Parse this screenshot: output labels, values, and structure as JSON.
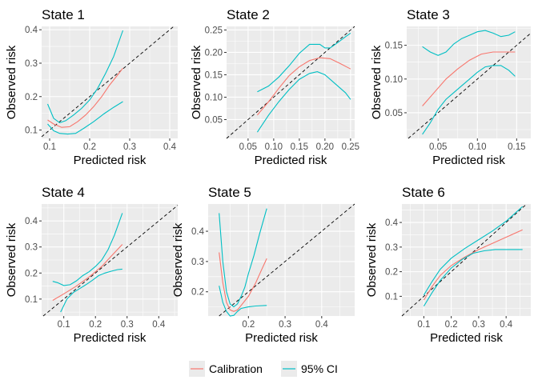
{
  "colors": {
    "calibration": "#F8766D",
    "ci": "#00BFC4",
    "panel_bg": "#EBEBEB",
    "grid": "#FFFFFF",
    "diagonal": "#000000"
  },
  "legend": {
    "items": [
      {
        "label": "Calibration",
        "color": "#F8766D"
      },
      {
        "label": "95% CI",
        "color": "#00BFC4"
      }
    ]
  },
  "chart_data": [
    {
      "type": "line",
      "title": "State 1",
      "xlabel": "Predicted risk",
      "ylabel": "Observed risk",
      "xlim": [
        0.08,
        0.42
      ],
      "ylim": [
        0.075,
        0.41
      ],
      "xticks": [
        0.1,
        0.2,
        0.3,
        0.4
      ],
      "xtick_labels": [
        "0.1",
        "0.2",
        "0.3",
        "0.4"
      ],
      "yticks": [
        0.1,
        0.2,
        0.3,
        0.4
      ],
      "ytick_labels": [
        "0.1",
        "0.2",
        "0.3",
        "0.4"
      ],
      "series": [
        {
          "name": "Calibration",
          "points": [
            [
              0.095,
              0.13
            ],
            [
              0.11,
              0.118
            ],
            [
              0.13,
              0.108
            ],
            [
              0.15,
              0.11
            ],
            [
              0.17,
              0.125
            ],
            [
              0.19,
              0.145
            ],
            [
              0.21,
              0.17
            ],
            [
              0.23,
              0.2
            ],
            [
              0.25,
              0.235
            ],
            [
              0.27,
              0.265
            ],
            [
              0.283,
              0.285
            ]
          ]
        },
        {
          "name": "95% CI",
          "points": [
            [
              0.095,
              0.178
            ],
            [
              0.11,
              0.135
            ],
            [
              0.125,
              0.122
            ],
            [
              0.14,
              0.128
            ],
            [
              0.16,
              0.145
            ],
            [
              0.18,
              0.165
            ],
            [
              0.2,
              0.19
            ],
            [
              0.22,
              0.225
            ],
            [
              0.24,
              0.27
            ],
            [
              0.26,
              0.32
            ],
            [
              0.283,
              0.398
            ]
          ]
        },
        {
          "name": "95% CI",
          "points": [
            [
              0.095,
              0.118
            ],
            [
              0.11,
              0.098
            ],
            [
              0.125,
              0.09
            ],
            [
              0.145,
              0.088
            ],
            [
              0.165,
              0.09
            ],
            [
              0.185,
              0.105
            ],
            [
              0.21,
              0.125
            ],
            [
              0.235,
              0.148
            ],
            [
              0.26,
              0.168
            ],
            [
              0.283,
              0.185
            ]
          ]
        }
      ]
    },
    {
      "type": "line",
      "title": "State 2",
      "xlabel": "Predicted risk",
      "ylabel": "Observed risk",
      "xlim": [
        0.008,
        0.258
      ],
      "ylim": [
        0.008,
        0.258
      ],
      "xticks": [
        0.05,
        0.1,
        0.15,
        0.2,
        0.25
      ],
      "xtick_labels": [
        "0.05",
        "0.10",
        "0.15",
        "0.20",
        "0.25"
      ],
      "yticks": [
        0.05,
        0.1,
        0.15,
        0.2,
        0.25
      ],
      "ytick_labels": [
        "0.05",
        "0.10",
        "0.15",
        "0.20",
        "0.25"
      ],
      "series": [
        {
          "name": "Calibration",
          "points": [
            [
              0.068,
              0.06
            ],
            [
              0.09,
              0.09
            ],
            [
              0.11,
              0.12
            ],
            [
              0.13,
              0.148
            ],
            [
              0.15,
              0.168
            ],
            [
              0.17,
              0.182
            ],
            [
              0.19,
              0.188
            ],
            [
              0.21,
              0.186
            ],
            [
              0.23,
              0.175
            ],
            [
              0.25,
              0.163
            ]
          ]
        },
        {
          "name": "95% CI",
          "points": [
            [
              0.068,
              0.112
            ],
            [
              0.09,
              0.125
            ],
            [
              0.11,
              0.145
            ],
            [
              0.13,
              0.17
            ],
            [
              0.15,
              0.198
            ],
            [
              0.17,
              0.218
            ],
            [
              0.19,
              0.218
            ],
            [
              0.2,
              0.21
            ],
            [
              0.21,
              0.21
            ],
            [
              0.225,
              0.222
            ],
            [
              0.24,
              0.235
            ],
            [
              0.25,
              0.243
            ]
          ]
        },
        {
          "name": "95% CI",
          "points": [
            [
              0.068,
              0.022
            ],
            [
              0.09,
              0.06
            ],
            [
              0.11,
              0.09
            ],
            [
              0.13,
              0.117
            ],
            [
              0.15,
              0.14
            ],
            [
              0.17,
              0.153
            ],
            [
              0.185,
              0.157
            ],
            [
              0.2,
              0.15
            ],
            [
              0.22,
              0.13
            ],
            [
              0.24,
              0.11
            ],
            [
              0.25,
              0.095
            ]
          ]
        }
      ]
    },
    {
      "type": "line",
      "title": "State 3",
      "xlabel": "Predicted risk",
      "ylabel": "Observed risk",
      "xlim": [
        0.01,
        0.168
      ],
      "ylim": [
        0.012,
        0.178
      ],
      "xticks": [
        0.05,
        0.1,
        0.15
      ],
      "xtick_labels": [
        "0.05",
        "0.10",
        "0.15"
      ],
      "yticks": [
        0.05,
        0.1,
        0.15
      ],
      "ytick_labels": [
        "0.05",
        "0.10",
        "0.15"
      ],
      "series": [
        {
          "name": "Calibration",
          "points": [
            [
              0.03,
              0.06
            ],
            [
              0.045,
              0.08
            ],
            [
              0.06,
              0.1
            ],
            [
              0.075,
              0.115
            ],
            [
              0.09,
              0.128
            ],
            [
              0.105,
              0.137
            ],
            [
              0.12,
              0.14
            ],
            [
              0.135,
              0.14
            ],
            [
              0.148,
              0.14
            ]
          ]
        },
        {
          "name": "95% CI",
          "points": [
            [
              0.03,
              0.148
            ],
            [
              0.04,
              0.14
            ],
            [
              0.05,
              0.135
            ],
            [
              0.06,
              0.14
            ],
            [
              0.07,
              0.152
            ],
            [
              0.08,
              0.16
            ],
            [
              0.09,
              0.165
            ],
            [
              0.1,
              0.17
            ],
            [
              0.11,
              0.172
            ],
            [
              0.12,
              0.168
            ],
            [
              0.13,
              0.163
            ],
            [
              0.14,
              0.165
            ],
            [
              0.148,
              0.17
            ]
          ]
        },
        {
          "name": "95% CI",
          "points": [
            [
              0.03,
              0.018
            ],
            [
              0.04,
              0.035
            ],
            [
              0.05,
              0.055
            ],
            [
              0.06,
              0.07
            ],
            [
              0.07,
              0.08
            ],
            [
              0.08,
              0.09
            ],
            [
              0.09,
              0.1
            ],
            [
              0.1,
              0.11
            ],
            [
              0.11,
              0.118
            ],
            [
              0.12,
              0.12
            ],
            [
              0.13,
              0.12
            ],
            [
              0.14,
              0.113
            ],
            [
              0.148,
              0.104
            ]
          ]
        }
      ]
    },
    {
      "type": "line",
      "title": "State 4",
      "xlabel": "Predicted risk",
      "ylabel": "Observed risk",
      "xlim": [
        0.03,
        0.46
      ],
      "ylim": [
        0.035,
        0.465
      ],
      "xticks": [
        0.1,
        0.2,
        0.3,
        0.4
      ],
      "xtick_labels": [
        "0.1",
        "0.2",
        "0.3",
        "0.4"
      ],
      "yticks": [
        0.1,
        0.2,
        0.3,
        0.4
      ],
      "ytick_labels": [
        "0.1",
        "0.2",
        "0.3",
        "0.4"
      ],
      "series": [
        {
          "name": "Calibration",
          "points": [
            [
              0.065,
              0.095
            ],
            [
              0.1,
              0.12
            ],
            [
              0.14,
              0.15
            ],
            [
              0.18,
              0.185
            ],
            [
              0.22,
              0.225
            ],
            [
              0.25,
              0.265
            ],
            [
              0.285,
              0.31
            ]
          ]
        },
        {
          "name": "95% CI",
          "points": [
            [
              0.065,
              0.168
            ],
            [
              0.08,
              0.163
            ],
            [
              0.1,
              0.152
            ],
            [
              0.12,
              0.155
            ],
            [
              0.14,
              0.17
            ],
            [
              0.16,
              0.19
            ],
            [
              0.18,
              0.205
            ],
            [
              0.2,
              0.225
            ],
            [
              0.22,
              0.25
            ],
            [
              0.24,
              0.29
            ],
            [
              0.26,
              0.345
            ],
            [
              0.285,
              0.43
            ]
          ]
        },
        {
          "name": "95% CI",
          "points": [
            [
              0.09,
              0.05
            ],
            [
              0.11,
              0.1
            ],
            [
              0.13,
              0.125
            ],
            [
              0.15,
              0.14
            ],
            [
              0.17,
              0.155
            ],
            [
              0.19,
              0.172
            ],
            [
              0.21,
              0.19
            ],
            [
              0.23,
              0.2
            ],
            [
              0.25,
              0.207
            ],
            [
              0.27,
              0.213
            ],
            [
              0.285,
              0.215
            ]
          ]
        }
      ]
    },
    {
      "type": "line",
      "title": "State 5",
      "xlabel": "Predicted risk",
      "ylabel": "Observed risk",
      "xlim": [
        0.09,
        0.49
      ],
      "ylim": [
        0.12,
        0.49
      ],
      "xticks": [
        0.2,
        0.3,
        0.4
      ],
      "xtick_labels": [
        "0.2",
        "0.3",
        "0.4"
      ],
      "yticks": [
        0.2,
        0.3,
        0.4
      ],
      "ytick_labels": [
        "0.2",
        "0.3",
        "0.4"
      ],
      "series": [
        {
          "name": "Calibration",
          "points": [
            [
              0.12,
              0.33
            ],
            [
              0.13,
              0.23
            ],
            [
              0.14,
              0.165
            ],
            [
              0.15,
              0.14
            ],
            [
              0.16,
              0.135
            ],
            [
              0.17,
              0.14
            ],
            [
              0.18,
              0.155
            ],
            [
              0.2,
              0.185
            ],
            [
              0.22,
              0.23
            ],
            [
              0.235,
              0.27
            ],
            [
              0.25,
              0.31
            ]
          ]
        },
        {
          "name": "95% CI",
          "points": [
            [
              0.12,
              0.46
            ],
            [
              0.13,
              0.3
            ],
            [
              0.14,
              0.2
            ],
            [
              0.15,
              0.16
            ],
            [
              0.16,
              0.15
            ],
            [
              0.17,
              0.16
            ],
            [
              0.18,
              0.185
            ],
            [
              0.19,
              0.215
            ],
            [
              0.2,
              0.26
            ],
            [
              0.215,
              0.32
            ],
            [
              0.23,
              0.39
            ],
            [
              0.25,
              0.475
            ]
          ]
        },
        {
          "name": "95% CI",
          "points": [
            [
              0.12,
              0.22
            ],
            [
              0.13,
              0.165
            ],
            [
              0.14,
              0.135
            ],
            [
              0.15,
              0.12
            ],
            [
              0.16,
              0.122
            ],
            [
              0.17,
              0.135
            ],
            [
              0.18,
              0.145
            ],
            [
              0.2,
              0.15
            ],
            [
              0.22,
              0.153
            ],
            [
              0.25,
              0.155
            ]
          ]
        }
      ]
    },
    {
      "type": "line",
      "title": "State 6",
      "xlabel": "Predicted risk",
      "ylabel": "Observed risk",
      "xlim": [
        0.02,
        0.49
      ],
      "ylim": [
        0.02,
        0.475
      ],
      "xticks": [
        0.1,
        0.2,
        0.3,
        0.4
      ],
      "xtick_labels": [
        "0.1",
        "0.2",
        "0.3",
        "0.4"
      ],
      "yticks": [
        0.1,
        0.2,
        0.3,
        0.4
      ],
      "ytick_labels": [
        "0.1",
        "0.2",
        "0.3",
        "0.4"
      ],
      "series": [
        {
          "name": "Calibration",
          "points": [
            [
              0.1,
              0.085
            ],
            [
              0.13,
              0.14
            ],
            [
              0.16,
              0.185
            ],
            [
              0.2,
              0.225
            ],
            [
              0.25,
              0.26
            ],
            [
              0.3,
              0.29
            ],
            [
              0.35,
              0.315
            ],
            [
              0.4,
              0.34
            ],
            [
              0.46,
              0.37
            ]
          ]
        },
        {
          "name": "95% CI",
          "points": [
            [
              0.1,
              0.105
            ],
            [
              0.13,
              0.16
            ],
            [
              0.16,
              0.21
            ],
            [
              0.2,
              0.255
            ],
            [
              0.25,
              0.295
            ],
            [
              0.3,
              0.33
            ],
            [
              0.35,
              0.365
            ],
            [
              0.4,
              0.405
            ],
            [
              0.46,
              0.465
            ]
          ]
        },
        {
          "name": "95% CI",
          "points": [
            [
              0.1,
              0.06
            ],
            [
              0.13,
              0.115
            ],
            [
              0.16,
              0.165
            ],
            [
              0.2,
              0.215
            ],
            [
              0.24,
              0.25
            ],
            [
              0.28,
              0.275
            ],
            [
              0.32,
              0.285
            ],
            [
              0.36,
              0.29
            ],
            [
              0.4,
              0.29
            ],
            [
              0.46,
              0.29
            ]
          ]
        }
      ]
    }
  ]
}
